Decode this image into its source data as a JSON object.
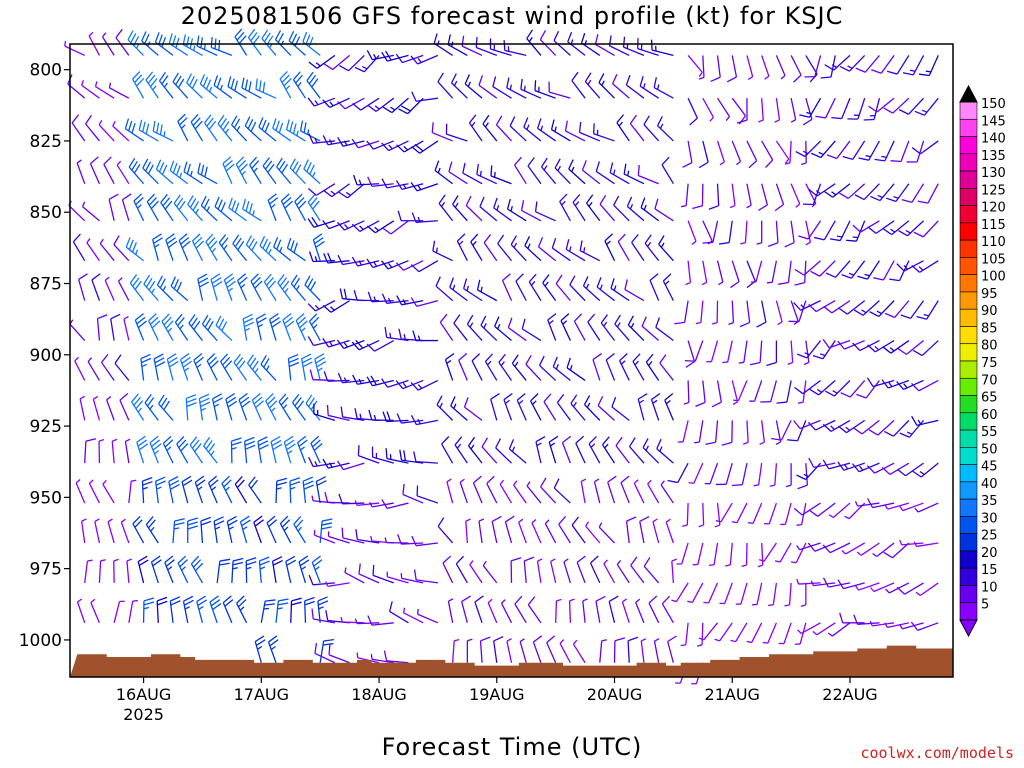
{
  "chart_data": {
    "type": "wind-profile",
    "title": "2025081506 GFS forecast wind profile (kt) for KSJC",
    "xlabel": "Forecast Time (UTC)",
    "ylabel": "",
    "x_ticks": [
      "16AUG",
      "17AUG",
      "18AUG",
      "19AUG",
      "20AUG",
      "21AUG",
      "22AUG"
    ],
    "x_year_label": "2025",
    "x_range_hours": [
      -15,
      165
    ],
    "y_ticks": [
      800,
      825,
      850,
      875,
      900,
      925,
      950,
      975,
      1000
    ],
    "ylim_hpa": [
      1013,
      791
    ],
    "levels_hpa": [
      795,
      810,
      825,
      840,
      853,
      867,
      881,
      895,
      909,
      923,
      938,
      952,
      966,
      980,
      994,
      1008
    ],
    "time_step_hours": 3,
    "time_start_hours": -12,
    "time_count": 60,
    "wind_speed_scale_kt": [
      5,
      10,
      15,
      20,
      25,
      30,
      35,
      40,
      45,
      50,
      55,
      60,
      65,
      70,
      75,
      80,
      85,
      90,
      95,
      100,
      105,
      110,
      115,
      120,
      125,
      130,
      135,
      140,
      145,
      150
    ],
    "scale_colors": [
      "#8800ff",
      "#6600ee",
      "#3300dd",
      "#1100cc",
      "#0033dd",
      "#0055ee",
      "#1177ff",
      "#1199ff",
      "#00bbff",
      "#00ddcc",
      "#00ddaa",
      "#00dd66",
      "#22dd22",
      "#66ee00",
      "#aaee00",
      "#eeee00",
      "#ffdd00",
      "#ffbb00",
      "#ff9900",
      "#ff7700",
      "#ff5500",
      "#ff3300",
      "#ff0000",
      "#ee0033",
      "#dd0066",
      "#dd0099",
      "#ee00bb",
      "#ff00dd",
      "#ff44ee",
      "#ff88ff"
    ],
    "regimes": [
      {
        "t_from": -12,
        "t_to": -3,
        "direction_deg": 315,
        "speed_kt": 7
      },
      {
        "t_from": 0,
        "t_to": 36,
        "direction_deg": 310,
        "speed_kt": 30
      },
      {
        "t_from": 39,
        "t_to": 60,
        "direction_deg": 240,
        "speed_kt": 14
      },
      {
        "t_from": 63,
        "t_to": 108,
        "direction_deg": 300,
        "speed_kt": 13
      },
      {
        "t_from": 111,
        "t_to": 135,
        "direction_deg": 160,
        "speed_kt": 7
      },
      {
        "t_from": 138,
        "t_to": 165,
        "direction_deg": 210,
        "speed_kt": 12
      }
    ],
    "terrain_color": "#a0522d",
    "terrain_hpa": [
      1005,
      1005,
      1006,
      1006,
      1006,
      1005,
      1005,
      1006,
      1007,
      1007,
      1007,
      1007,
      1008,
      1008,
      1007,
      1007,
      1008,
      1008,
      1008,
      1007,
      1008,
      1008,
      1008,
      1007,
      1007,
      1008,
      1008,
      1009,
      1009,
      1009,
      1008,
      1008,
      1008,
      1009,
      1009,
      1009,
      1009,
      1009,
      1008,
      1008,
      1009,
      1008,
      1008,
      1007,
      1007,
      1006,
      1006,
      1005,
      1005,
      1005,
      1004,
      1004,
      1004,
      1003,
      1003,
      1002,
      1002,
      1003,
      1003,
      1003
    ]
  },
  "credit": "coolwx.com/models"
}
